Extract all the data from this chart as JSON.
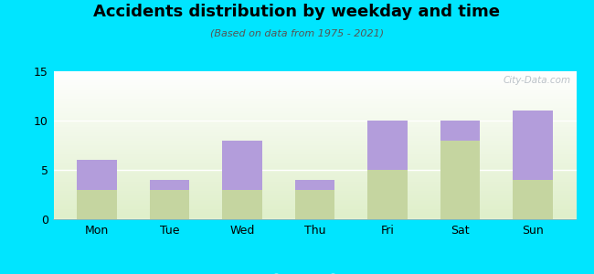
{
  "categories": [
    "Mon",
    "Tue",
    "Wed",
    "Thu",
    "Fri",
    "Sat",
    "Sun"
  ],
  "am_values": [
    3,
    1,
    5,
    1,
    5,
    2,
    7
  ],
  "pm_values": [
    3,
    3,
    3,
    3,
    5,
    8,
    4
  ],
  "am_color": "#b39ddb",
  "pm_color": "#c5d5a0",
  "title": "Accidents distribution by weekday and time",
  "subtitle": "(Based on data from 1975 - 2021)",
  "ylim": [
    0,
    15
  ],
  "yticks": [
    0,
    5,
    10,
    15
  ],
  "bg_color": "#00e5ff",
  "plot_bg_top_left": "#ffffff",
  "plot_bg_bottom_right": "#d0e8b0",
  "watermark": "City-Data.com",
  "bar_width": 0.55,
  "title_fontsize": 13,
  "subtitle_fontsize": 8,
  "tick_fontsize": 9
}
